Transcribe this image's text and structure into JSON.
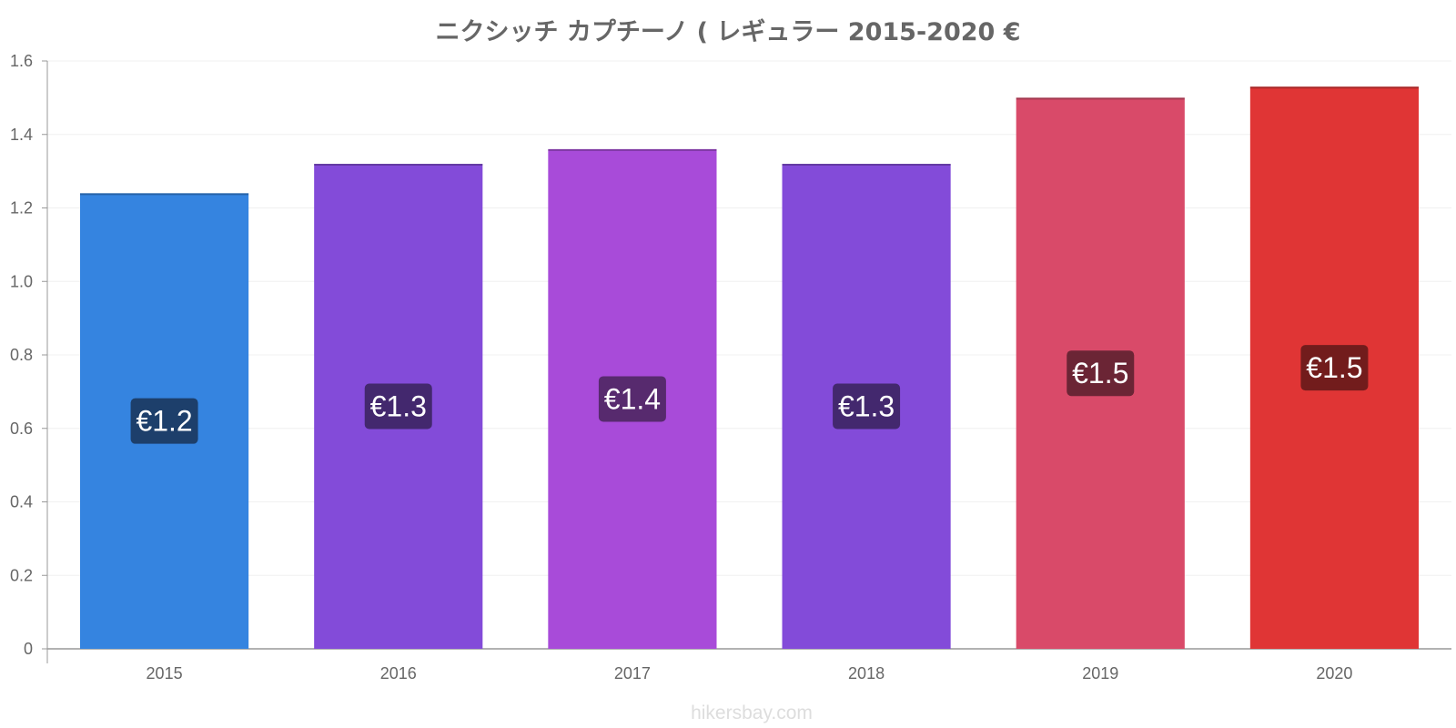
{
  "chart_data": {
    "type": "bar",
    "title": "ニクシッチ カプチーノ ( レギュラー 2015-2020 €",
    "categories": [
      "2015",
      "2016",
      "2017",
      "2018",
      "2019",
      "2020"
    ],
    "values": [
      1.24,
      1.32,
      1.36,
      1.32,
      1.5,
      1.53
    ],
    "data_labels": [
      "€1.2",
      "€1.3",
      "€1.4",
      "€1.3",
      "€1.5",
      "€1.5"
    ],
    "bar_colors": [
      "#3584e0",
      "#834bd9",
      "#a84bd9",
      "#834bd9",
      "#d94a69",
      "#e03535"
    ],
    "label_bg_colors": [
      "#1d3f6b",
      "#43286e",
      "#572a6e",
      "#43286e",
      "#6b2535",
      "#721c1c"
    ],
    "ylim": [
      0,
      1.6
    ],
    "yticks": [
      "0",
      "0.2",
      "0.4",
      "0.6",
      "0.8",
      "1.0",
      "1.2",
      "1.4",
      "1.6"
    ],
    "xlabel": "",
    "ylabel": "",
    "grid": true,
    "legend": "none"
  },
  "watermark": "hikersbay.com"
}
